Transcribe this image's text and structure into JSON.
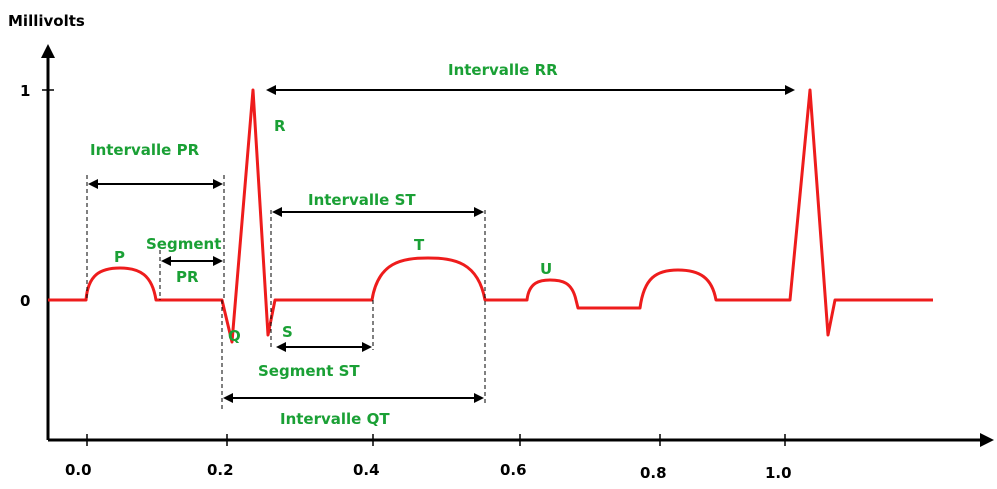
{
  "axes": {
    "y_label": "Millivolts",
    "y_ticks": [
      "1",
      "0"
    ],
    "x_ticks": [
      "0.0",
      "0.2",
      "0.4",
      "0.6",
      "0.8",
      "1.0"
    ]
  },
  "waves": {
    "p": "P",
    "q": "Q",
    "r": "R",
    "s": "S",
    "t": "T",
    "u": "U"
  },
  "intervals": {
    "pr": "Intervalle PR",
    "rr": "Intervalle RR",
    "st": "Intervalle ST",
    "qt": "Intervalle QT"
  },
  "segments": {
    "pr_line1": "Segment",
    "pr_line2": "PR",
    "st": "Segment ST"
  },
  "colors": {
    "trace": "#ee1c1c",
    "labels": "#1aa035",
    "axes": "#000000"
  }
}
